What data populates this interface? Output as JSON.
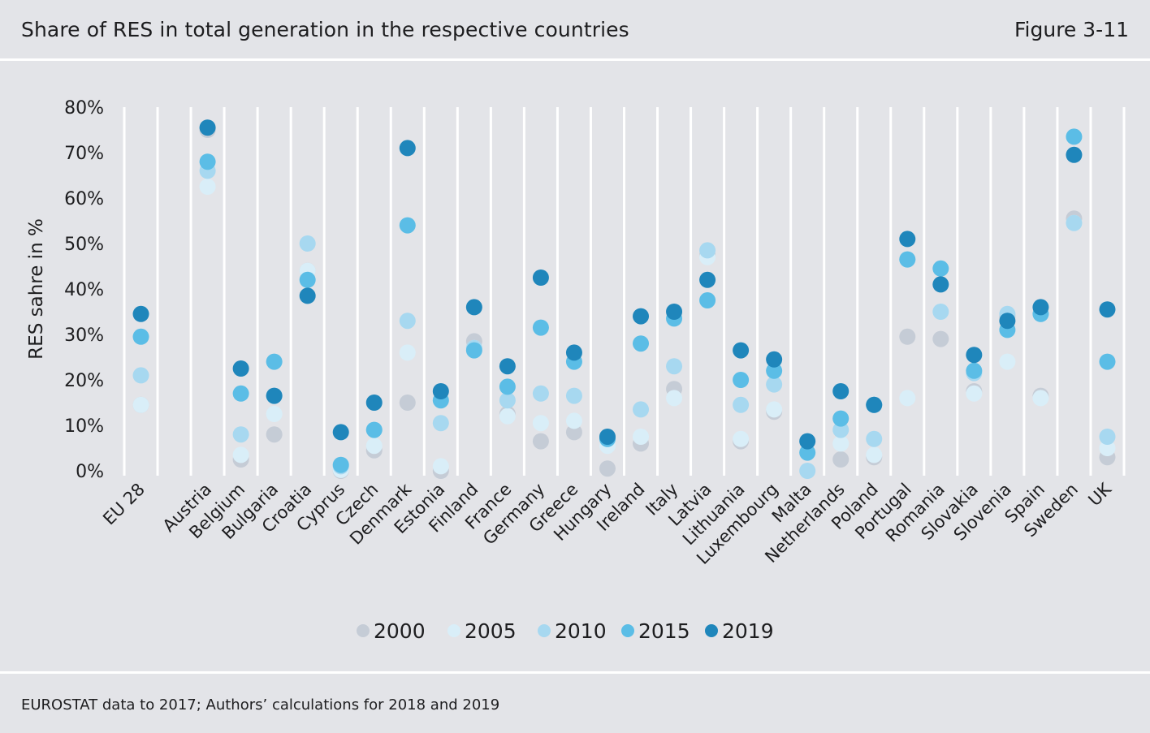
{
  "header": {
    "title": "Share of RES in total generation in the respective countries",
    "figure_label": "Figure 3-11"
  },
  "footer": {
    "source": "EUROSTAT data to 2017; Authors’ calculations for 2018 and 2019"
  },
  "colors": {
    "2000": "#c5ccd6",
    "2005": "#d9eef8",
    "2010": "#a7d8f0",
    "2015": "#5bbde6",
    "2019": "#1f86bb",
    "background": "#e3e4e8",
    "gridlines": "#ffffff"
  },
  "chart_data": {
    "type": "scatter",
    "title": "",
    "xlabel": "",
    "ylabel": "RES sahre in %",
    "ylim": [
      0,
      80
    ],
    "yticks": [
      "0%",
      "10%",
      "20%",
      "30%",
      "40%",
      "50%",
      "60%",
      "70%",
      "80%"
    ],
    "grid": "vertical",
    "legend_position": "bottom",
    "categories": [
      "EU 28",
      "",
      "Austria",
      "Belgium",
      "Bulgaria",
      "Croatia",
      "Cyprus",
      "Czech",
      "Denmark",
      "Estonia",
      "Finland",
      "France",
      "Germany",
      "Greece",
      "Hungary",
      "Ireland",
      "Italy",
      "Latvia",
      "Lithuania",
      "Luxembourg",
      "Malta",
      "Netherlands",
      "Poland",
      "Portugal",
      "Romania",
      "Slovakia",
      "Slovenia",
      "Spain",
      "Sweden",
      "UK"
    ],
    "series": [
      {
        "name": "2000",
        "values": [
          14.5,
          null,
          75,
          2.5,
          8,
          44,
          0,
          4.5,
          15,
          0,
          28.5,
          12.5,
          6.5,
          8.5,
          0.5,
          6,
          18,
          47.5,
          6.5,
          13,
          null,
          2.5,
          3,
          29.5,
          29,
          17.5,
          34,
          16.5,
          55.5,
          3
        ]
      },
      {
        "name": "2005",
        "values": [
          14.5,
          null,
          62.5,
          3.5,
          12.5,
          44,
          0.2,
          5.5,
          26,
          1,
          27,
          12,
          10.5,
          11,
          5.5,
          7.5,
          16,
          47,
          7,
          13.5,
          null,
          6,
          3.5,
          16,
          35,
          17,
          24,
          16,
          54.5,
          5
        ]
      },
      {
        "name": "2010",
        "values": [
          21,
          null,
          66,
          8,
          16.5,
          50,
          1,
          9,
          33,
          10.5,
          27,
          15.5,
          17,
          16.5,
          7,
          13.5,
          23,
          48.5,
          14.5,
          19,
          0,
          9,
          7,
          46.5,
          35,
          21.5,
          34.5,
          34.5,
          54.5,
          7.5
        ]
      },
      {
        "name": "2015",
        "values": [
          29.5,
          null,
          68,
          17,
          24,
          42,
          1.3,
          9,
          54,
          15.5,
          26.5,
          18.5,
          31.5,
          24,
          7,
          28,
          33.5,
          37.5,
          20,
          22,
          4,
          11.5,
          14.5,
          46.5,
          44.5,
          22,
          31,
          34.5,
          73.5,
          24
        ]
      },
      {
        "name": "2019",
        "values": [
          34.5,
          null,
          75.5,
          22.5,
          16.5,
          38.5,
          8.5,
          15,
          71,
          17.5,
          36,
          23,
          42.5,
          26,
          7.5,
          34,
          35,
          42,
          26.5,
          24.5,
          6.5,
          17.5,
          14.5,
          51,
          41,
          25.5,
          33,
          36,
          69.5,
          35.5
        ]
      }
    ]
  }
}
